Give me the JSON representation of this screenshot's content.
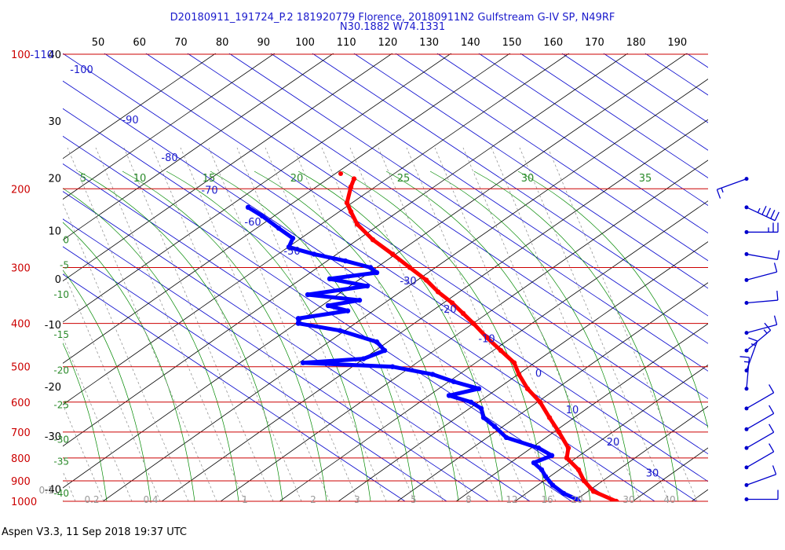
{
  "header": {
    "title_line1": "D20180911_191724_P.2 181920779 Florence, 20180911N2 Gulfstream G-IV SP, N49RF",
    "title_line2": "N30.1882 W74.1331"
  },
  "footer": {
    "text": "Aspen V3.3, 11 Sep 2018  19:37 UTC"
  },
  "colors": {
    "isobar": "#cc0000",
    "isotherm": "#0000cc",
    "dry_adiabat": "#000000",
    "moist_adiabat": "#008800",
    "mixing_ratio": "#888888",
    "temperature_profile": "#ff0000",
    "dewpoint_profile": "#0000ff",
    "wind_barb": "#0000cc"
  },
  "chart_data": {
    "type": "line",
    "chart_kind": "skew-T log-P thermodynamic diagram",
    "pressure_levels_hPa": [
      "100",
      "200",
      "300",
      "400",
      "500",
      "600",
      "700",
      "800",
      "900",
      "1000"
    ],
    "pressure_tick_values": [
      100,
      200,
      300,
      400,
      500,
      600,
      700,
      800,
      900,
      1000
    ],
    "top_axis_ticks": [
      "50",
      "60",
      "70",
      "80",
      "90",
      "100",
      "110",
      "120",
      "130",
      "140",
      "150",
      "160",
      "170",
      "180",
      "190"
    ],
    "left_axis_ticks": [
      {
        "label": "40",
        "p": 100,
        "color": "black"
      },
      {
        "label": "30",
        "p": 141,
        "color": "black"
      },
      {
        "label": "20",
        "p": 189,
        "color": "black"
      },
      {
        "label": "10",
        "p": 248,
        "color": "black"
      },
      {
        "label": "0",
        "p": 318,
        "color": "black"
      },
      {
        "label": "-10",
        "p": 402,
        "color": "black"
      },
      {
        "label": "-20",
        "p": 554,
        "color": "black"
      },
      {
        "label": "-30",
        "p": 715,
        "color": "black"
      },
      {
        "label": "-40",
        "p": 940,
        "color": "black"
      },
      {
        "label": "-110",
        "p": 100,
        "color": "blue"
      },
      {
        "label": "0",
        "p": 254,
        "color": "green"
      },
      {
        "label": "-5",
        "p": 289,
        "color": "green"
      },
      {
        "label": "-10",
        "p": 337,
        "color": "green"
      },
      {
        "label": "-15",
        "p": 414,
        "color": "green"
      },
      {
        "label": "-20",
        "p": 498,
        "color": "green"
      },
      {
        "label": "-25",
        "p": 595,
        "color": "green"
      },
      {
        "label": "-30",
        "p": 710,
        "color": "green"
      },
      {
        "label": "-35",
        "p": 795,
        "color": "green"
      },
      {
        "label": "-40",
        "p": 938,
        "color": "green"
      }
    ],
    "isotherm_labels": [
      {
        "label": "-100",
        "x": 104,
        "p": 108
      },
      {
        "label": "-90",
        "x": 166,
        "p": 140
      },
      {
        "label": "-80",
        "x": 216,
        "p": 170
      },
      {
        "label": "-70",
        "x": 267,
        "p": 201
      },
      {
        "label": "-60",
        "x": 322,
        "p": 237
      },
      {
        "label": "-50",
        "x": 372,
        "p": 275
      },
      {
        "label": "-30",
        "x": 520,
        "p": 321
      },
      {
        "label": "-20",
        "x": 571,
        "p": 371
      },
      {
        "label": "-10",
        "x": 620,
        "p": 432
      },
      {
        "label": "0",
        "x": 686,
        "p": 516
      },
      {
        "label": "10",
        "x": 729,
        "p": 623
      },
      {
        "label": "20",
        "x": 781,
        "p": 735
      },
      {
        "label": "30",
        "x": 831,
        "p": 863
      }
    ],
    "moist_adiabat_labels": [
      {
        "label": "5",
        "x": 106
      },
      {
        "label": "10",
        "x": 178
      },
      {
        "label": "15",
        "x": 266
      },
      {
        "label": "20",
        "x": 378
      },
      {
        "label": "25",
        "x": 514
      },
      {
        "label": "30",
        "x": 672
      },
      {
        "label": "35",
        "x": 822
      }
    ],
    "mixing_ratio_labels": [
      "0.1",
      "0.2",
      "0.4",
      "1",
      "2",
      "3",
      "5",
      "8",
      "12",
      "16",
      "20",
      "30",
      "40"
    ],
    "temperature_profile": [
      {
        "p": 190,
        "x": 451
      },
      {
        "p": 198,
        "x": 447
      },
      {
        "p": 215,
        "x": 442
      },
      {
        "p": 225,
        "x": 447
      },
      {
        "p": 240,
        "x": 455
      },
      {
        "p": 260,
        "x": 475
      },
      {
        "p": 280,
        "x": 500
      },
      {
        "p": 300,
        "x": 522
      },
      {
        "p": 320,
        "x": 543
      },
      {
        "p": 340,
        "x": 558
      },
      {
        "p": 360,
        "x": 576
      },
      {
        "p": 380,
        "x": 590
      },
      {
        "p": 400,
        "x": 603
      },
      {
        "p": 430,
        "x": 620
      },
      {
        "p": 460,
        "x": 638
      },
      {
        "p": 490,
        "x": 655
      },
      {
        "p": 520,
        "x": 661
      },
      {
        "p": 560,
        "x": 672
      },
      {
        "p": 600,
        "x": 688
      },
      {
        "p": 650,
        "x": 700
      },
      {
        "p": 700,
        "x": 712
      },
      {
        "p": 760,
        "x": 724
      },
      {
        "p": 800,
        "x": 722
      },
      {
        "p": 850,
        "x": 737
      },
      {
        "p": 900,
        "x": 744
      },
      {
        "p": 950,
        "x": 756
      },
      {
        "p": 1000,
        "x": 785
      },
      {
        "p": 1012,
        "x": 790
      }
    ],
    "dewpoint_profile": [
      {
        "p": 220,
        "x": 316
      },
      {
        "p": 230,
        "x": 334
      },
      {
        "p": 245,
        "x": 355
      },
      {
        "p": 258,
        "x": 373
      },
      {
        "p": 270,
        "x": 368
      },
      {
        "p": 280,
        "x": 400
      },
      {
        "p": 290,
        "x": 440
      },
      {
        "p": 300,
        "x": 472
      },
      {
        "p": 308,
        "x": 480
      },
      {
        "p": 318,
        "x": 420
      },
      {
        "p": 330,
        "x": 468
      },
      {
        "p": 345,
        "x": 392
      },
      {
        "p": 355,
        "x": 458
      },
      {
        "p": 365,
        "x": 418
      },
      {
        "p": 375,
        "x": 443
      },
      {
        "p": 390,
        "x": 380
      },
      {
        "p": 400,
        "x": 380
      },
      {
        "p": 415,
        "x": 433
      },
      {
        "p": 440,
        "x": 480
      },
      {
        "p": 460,
        "x": 490
      },
      {
        "p": 480,
        "x": 463
      },
      {
        "p": 490,
        "x": 386
      },
      {
        "p": 500,
        "x": 500
      },
      {
        "p": 520,
        "x": 551
      },
      {
        "p": 540,
        "x": 578
      },
      {
        "p": 560,
        "x": 610
      },
      {
        "p": 580,
        "x": 572
      },
      {
        "p": 600,
        "x": 600
      },
      {
        "p": 620,
        "x": 613
      },
      {
        "p": 650,
        "x": 616
      },
      {
        "p": 680,
        "x": 630
      },
      {
        "p": 720,
        "x": 645
      },
      {
        "p": 760,
        "x": 686
      },
      {
        "p": 790,
        "x": 703
      },
      {
        "p": 820,
        "x": 680
      },
      {
        "p": 850,
        "x": 690
      },
      {
        "p": 880,
        "x": 695
      },
      {
        "p": 920,
        "x": 704
      },
      {
        "p": 960,
        "x": 718
      },
      {
        "p": 990,
        "x": 735
      },
      {
        "p": 1012,
        "x": 740
      }
    ],
    "wind_barbs": [
      {
        "p": 190,
        "dir": 70,
        "speed": 5
      },
      {
        "p": 220,
        "dir": 295,
        "speed": 35
      },
      {
        "p": 250,
        "dir": 270,
        "speed": 15
      },
      {
        "p": 280,
        "dir": 280,
        "speed": 10
      },
      {
        "p": 320,
        "dir": 255,
        "speed": 10
      },
      {
        "p": 360,
        "dir": 265,
        "speed": 10
      },
      {
        "p": 420,
        "dir": 255,
        "speed": 10
      },
      {
        "p": 460,
        "dir": 230,
        "speed": 5
      },
      {
        "p": 510,
        "dir": 200,
        "speed": 5
      },
      {
        "p": 560,
        "dir": 185,
        "speed": 5
      },
      {
        "p": 620,
        "dir": 240,
        "speed": 10
      },
      {
        "p": 690,
        "dir": 240,
        "speed": 10
      },
      {
        "p": 760,
        "dir": 240,
        "speed": 10
      },
      {
        "p": 840,
        "dir": 240,
        "speed": 10
      },
      {
        "p": 920,
        "dir": 250,
        "speed": 10
      },
      {
        "p": 990,
        "dir": 270,
        "speed": 10
      }
    ]
  }
}
